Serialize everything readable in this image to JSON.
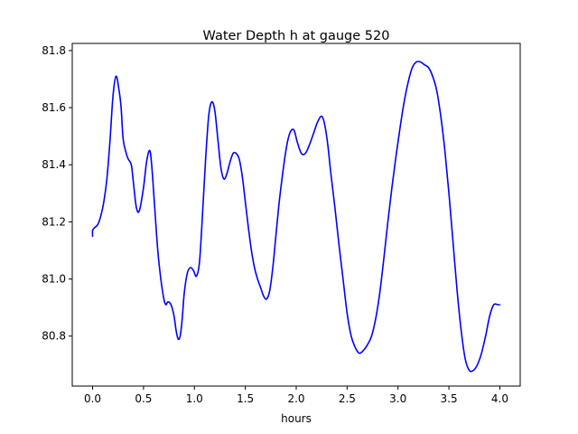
{
  "chart_data": {
    "type": "line",
    "title": "Water Depth h at gauge 520",
    "xlabel": "hours",
    "ylabel": "",
    "xlim": [
      -0.2,
      4.2
    ],
    "ylim": [
      80.625,
      81.825
    ],
    "xticks": [
      0.0,
      0.5,
      1.0,
      1.5,
      2.0,
      2.5,
      3.0,
      3.5,
      4.0
    ],
    "xtick_labels": [
      "0.0",
      "0.5",
      "1.0",
      "1.5",
      "2.0",
      "2.5",
      "3.0",
      "3.5",
      "4.0"
    ],
    "yticks": [
      80.8,
      81.0,
      81.2,
      81.4,
      81.6,
      81.8
    ],
    "ytick_labels": [
      "80.8",
      "81.0",
      "81.2",
      "81.4",
      "81.6",
      "81.8"
    ],
    "grid": false,
    "legend": "none",
    "line_color": "#0000ff",
    "series": [
      {
        "x": [
          0.0,
          0.0,
          0.02,
          0.05,
          0.08,
          0.11,
          0.14,
          0.17,
          0.2,
          0.23,
          0.26,
          0.28,
          0.3,
          0.33,
          0.35,
          0.38,
          0.4,
          0.43,
          0.46,
          0.5,
          0.53,
          0.56,
          0.58,
          0.61,
          0.64,
          0.67,
          0.7,
          0.72,
          0.74,
          0.77,
          0.8,
          0.82,
          0.84,
          0.86,
          0.88,
          0.9,
          0.93,
          0.96,
          0.99,
          1.02,
          1.05,
          1.08,
          1.11,
          1.14,
          1.17,
          1.2,
          1.23,
          1.26,
          1.29,
          1.32,
          1.35,
          1.38,
          1.41,
          1.44,
          1.47,
          1.5,
          1.53,
          1.56,
          1.59,
          1.62,
          1.65,
          1.68,
          1.71,
          1.74,
          1.77,
          1.8,
          1.83,
          1.86,
          1.89,
          1.92,
          1.95,
          1.98,
          2.01,
          2.05,
          2.09,
          2.13,
          2.17,
          2.21,
          2.25,
          2.28,
          2.31,
          2.34,
          2.38,
          2.42,
          2.46,
          2.5,
          2.54,
          2.58,
          2.62,
          2.66,
          2.7,
          2.74,
          2.78,
          2.82,
          2.86,
          2.9,
          2.94,
          2.98,
          3.02,
          3.06,
          3.1,
          3.14,
          3.18,
          3.22,
          3.26,
          3.3,
          3.34,
          3.38,
          3.42,
          3.46,
          3.5,
          3.54,
          3.58,
          3.62,
          3.66,
          3.7,
          3.74,
          3.78,
          3.82,
          3.86,
          3.9,
          3.94,
          3.98,
          4.0
        ],
        "y": [
          81.15,
          81.17,
          81.18,
          81.19,
          81.22,
          81.27,
          81.35,
          81.48,
          81.64,
          81.71,
          81.66,
          81.6,
          81.49,
          81.44,
          81.42,
          81.4,
          81.34,
          81.25,
          81.24,
          81.32,
          81.41,
          81.45,
          81.4,
          81.25,
          81.1,
          81.0,
          80.93,
          80.91,
          80.92,
          80.91,
          80.87,
          80.82,
          80.79,
          80.8,
          80.86,
          80.95,
          81.02,
          81.04,
          81.03,
          81.01,
          81.06,
          81.23,
          81.42,
          81.57,
          81.62,
          81.59,
          81.49,
          81.39,
          81.35,
          81.37,
          81.41,
          81.44,
          81.44,
          81.42,
          81.36,
          81.27,
          81.18,
          81.1,
          81.04,
          81.0,
          80.97,
          80.94,
          80.93,
          80.96,
          81.04,
          81.15,
          81.26,
          81.35,
          81.43,
          81.49,
          81.52,
          81.52,
          81.48,
          81.44,
          81.44,
          81.47,
          81.51,
          81.55,
          81.57,
          81.54,
          81.47,
          81.37,
          81.25,
          81.12,
          81.0,
          80.88,
          80.8,
          80.76,
          80.74,
          80.75,
          80.77,
          80.8,
          80.86,
          80.95,
          81.07,
          81.2,
          81.32,
          81.43,
          81.53,
          81.62,
          81.69,
          81.74,
          81.76,
          81.76,
          81.75,
          81.74,
          81.71,
          81.66,
          81.57,
          81.45,
          81.3,
          81.13,
          80.96,
          80.82,
          80.72,
          80.68,
          80.68,
          80.7,
          80.74,
          80.8,
          80.87,
          80.91,
          80.91,
          80.91
        ]
      }
    ]
  }
}
